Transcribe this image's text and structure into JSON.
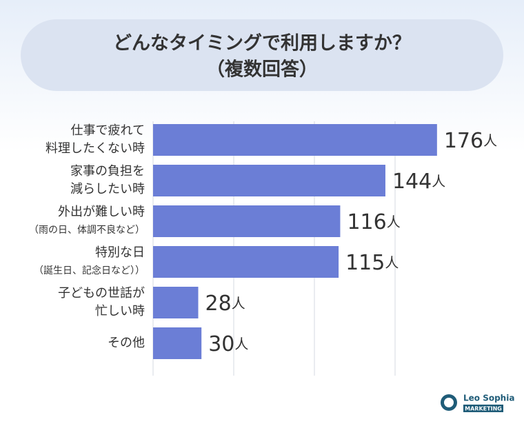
{
  "chart_data": {
    "type": "bar",
    "orientation": "horizontal",
    "title": "どんなタイミングで利用しますか？",
    "subtitle": "（複数回答）",
    "categories": [
      "仕事で疲れて\n料理したくない時",
      "家事の負担を\n減らしたい時",
      "外出が難しい時\n（雨の日、体調不良など）",
      "特別な日\n（誕生日、記念日など））",
      "子どもの世話が\n忙しい時",
      "その他"
    ],
    "values": [
      176,
      144,
      116,
      115,
      28,
      30
    ],
    "value_labels": [
      "176人",
      "144人",
      "116人",
      "115人",
      "28人",
      "30人"
    ],
    "color": "#6b7ed6",
    "xlim": [
      0,
      200
    ],
    "xticks": [
      0,
      50,
      100,
      150
    ],
    "grid": true,
    "logo": {
      "name": "Leo Sophia",
      "tag": "MARKETING"
    }
  }
}
